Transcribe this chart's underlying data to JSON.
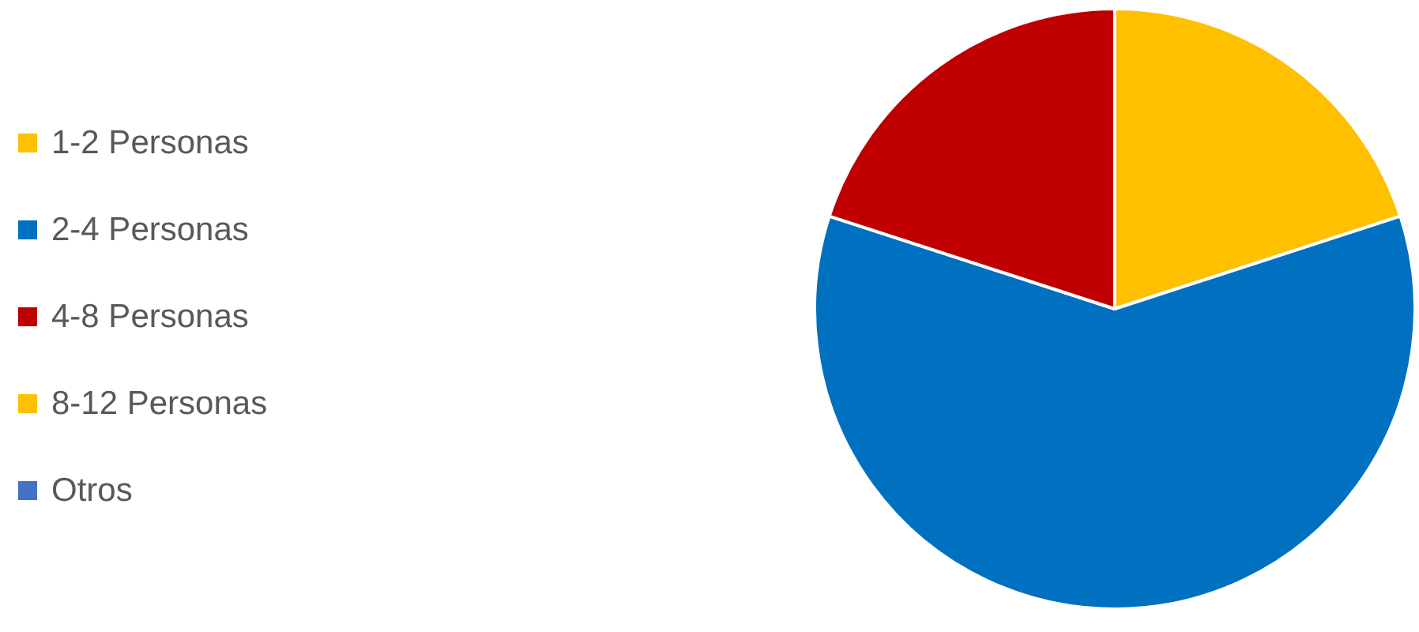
{
  "chart_data": {
    "type": "pie",
    "categories": [
      "1-2 Personas",
      "2-4 Personas",
      "4-8 Personas",
      "8-12 Personas",
      "Otros"
    ],
    "values": [
      20,
      60,
      20,
      0,
      0
    ],
    "colors": [
      "#ffc000",
      "#0070c0",
      "#c00000",
      "#ffc000",
      "#4472c4"
    ],
    "legend": "left"
  }
}
